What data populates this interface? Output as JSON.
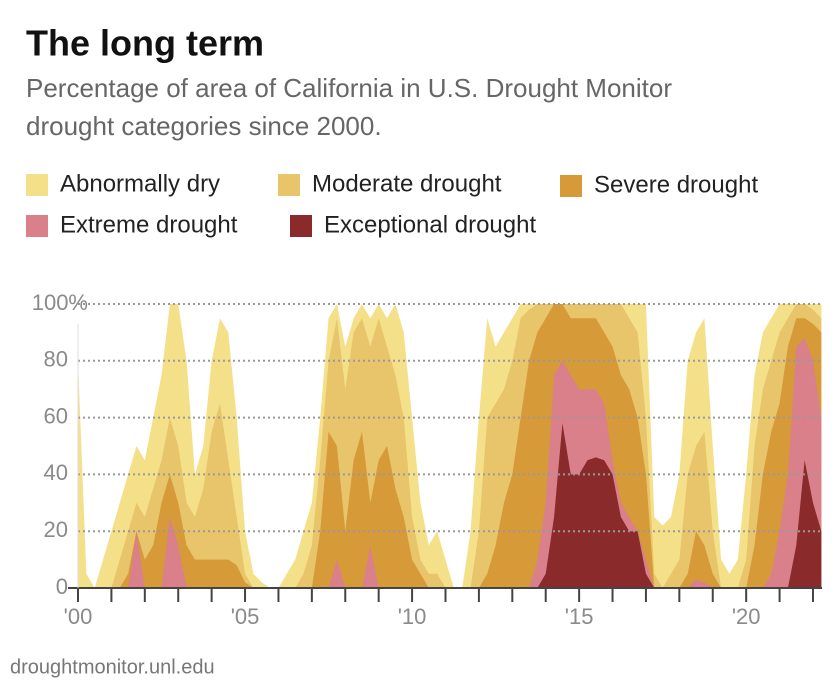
{
  "chart_data": {
    "type": "area",
    "title": "The long term",
    "subtitle": [
      "Percentage of area of California in U.S. Drought Monitor",
      "drought categories since 2000."
    ],
    "source": "droughtmonitor.unl.edu",
    "x": [
      2000,
      2000.25,
      2000.5,
      2000.75,
      2001,
      2001.25,
      2001.5,
      2001.75,
      2002,
      2002.25,
      2002.5,
      2002.75,
      2003,
      2003.25,
      2003.5,
      2003.75,
      2004,
      2004.25,
      2004.5,
      2004.75,
      2005,
      2005.25,
      2005.5,
      2005.75,
      2006,
      2006.25,
      2006.5,
      2006.75,
      2007,
      2007.25,
      2007.5,
      2007.75,
      2008,
      2008.25,
      2008.5,
      2008.75,
      2009,
      2009.25,
      2009.5,
      2009.75,
      2010,
      2010.25,
      2010.5,
      2010.75,
      2011,
      2011.25,
      2011.5,
      2011.75,
      2012,
      2012.25,
      2012.5,
      2012.75,
      2013,
      2013.25,
      2013.5,
      2013.75,
      2014,
      2014.25,
      2014.5,
      2014.75,
      2015,
      2015.25,
      2015.5,
      2015.75,
      2016,
      2016.25,
      2016.5,
      2016.75,
      2017,
      2017.25,
      2017.5,
      2017.75,
      2018,
      2018.25,
      2018.5,
      2018.75,
      2019,
      2019.25,
      2019.5,
      2019.75,
      2020,
      2020.25,
      2020.5,
      2020.75,
      2021,
      2021.25,
      2021.5,
      2021.75,
      2022,
      2022.25
    ],
    "series": [
      {
        "name": "Abnormally dry",
        "color": "#f5e08a",
        "values": [
          80,
          5,
          0,
          10,
          20,
          30,
          40,
          50,
          45,
          60,
          75,
          100,
          100,
          80,
          40,
          50,
          80,
          95,
          90,
          60,
          20,
          5,
          2,
          0,
          0,
          5,
          10,
          20,
          30,
          60,
          95,
          100,
          85,
          95,
          100,
          95,
          100,
          95,
          100,
          90,
          60,
          30,
          15,
          20,
          10,
          0,
          0,
          20,
          60,
          95,
          85,
          90,
          95,
          100,
          100,
          100,
          100,
          100,
          100,
          100,
          100,
          100,
          100,
          100,
          100,
          100,
          100,
          100,
          100,
          25,
          22,
          25,
          40,
          80,
          90,
          95,
          50,
          10,
          5,
          10,
          40,
          75,
          90,
          95,
          100,
          100,
          100,
          100,
          100,
          100
        ]
      },
      {
        "name": "Moderate drought",
        "color": "#e8c46a",
        "values": [
          0,
          0,
          0,
          0,
          0,
          10,
          20,
          30,
          25,
          35,
          45,
          60,
          50,
          30,
          25,
          35,
          55,
          65,
          45,
          25,
          5,
          0,
          0,
          0,
          0,
          0,
          0,
          5,
          15,
          45,
          80,
          95,
          70,
          90,
          95,
          85,
          95,
          85,
          75,
          60,
          25,
          10,
          5,
          5,
          0,
          0,
          0,
          0,
          20,
          60,
          65,
          70,
          80,
          95,
          98,
          100,
          100,
          100,
          100,
          100,
          100,
          100,
          100,
          100,
          100,
          100,
          95,
          90,
          60,
          5,
          0,
          5,
          10,
          40,
          50,
          55,
          20,
          0,
          0,
          0,
          10,
          50,
          70,
          80,
          90,
          95,
          100,
          100,
          98,
          95
        ]
      },
      {
        "name": "Severe drought",
        "color": "#d69a38",
        "values": [
          0,
          0,
          0,
          0,
          0,
          0,
          5,
          20,
          10,
          15,
          30,
          40,
          30,
          15,
          10,
          10,
          10,
          10,
          10,
          8,
          2,
          0,
          0,
          0,
          0,
          0,
          0,
          0,
          0,
          20,
          55,
          50,
          20,
          45,
          55,
          30,
          45,
          50,
          35,
          25,
          10,
          5,
          0,
          0,
          0,
          0,
          0,
          0,
          0,
          5,
          15,
          30,
          40,
          60,
          80,
          90,
          95,
          100,
          100,
          95,
          95,
          95,
          95,
          90,
          85,
          75,
          70,
          60,
          40,
          0,
          0,
          0,
          0,
          5,
          20,
          15,
          5,
          0,
          0,
          0,
          0,
          15,
          40,
          55,
          65,
          85,
          95,
          95,
          93,
          90
        ]
      },
      {
        "name": "Extreme drought",
        "color": "#d9808a",
        "values": [
          0,
          0,
          0,
          0,
          0,
          0,
          0,
          20,
          0,
          0,
          0,
          25,
          15,
          0,
          0,
          0,
          0,
          0,
          0,
          0,
          0,
          0,
          0,
          0,
          0,
          0,
          0,
          0,
          0,
          0,
          0,
          10,
          0,
          0,
          0,
          15,
          0,
          0,
          0,
          0,
          0,
          0,
          0,
          0,
          0,
          0,
          0,
          0,
          0,
          0,
          0,
          0,
          0,
          0,
          0,
          10,
          30,
          75,
          80,
          75,
          70,
          70,
          70,
          65,
          45,
          30,
          25,
          20,
          10,
          0,
          0,
          0,
          0,
          0,
          3,
          2,
          0,
          0,
          0,
          0,
          0,
          0,
          0,
          5,
          20,
          40,
          85,
          88,
          80,
          60
        ]
      },
      {
        "name": "Exceptional drought",
        "color": "#8b2a2a",
        "values": [
          0,
          0,
          0,
          0,
          0,
          0,
          0,
          0,
          0,
          0,
          0,
          0,
          0,
          0,
          0,
          0,
          0,
          0,
          0,
          0,
          0,
          0,
          0,
          0,
          0,
          0,
          0,
          0,
          0,
          0,
          0,
          0,
          0,
          0,
          0,
          0,
          0,
          0,
          0,
          0,
          0,
          0,
          0,
          0,
          0,
          0,
          0,
          0,
          0,
          0,
          0,
          0,
          0,
          0,
          0,
          0,
          5,
          25,
          58,
          40,
          40,
          45,
          46,
          45,
          40,
          25,
          20,
          20,
          5,
          0,
          0,
          0,
          0,
          0,
          0,
          0,
          0,
          0,
          0,
          0,
          0,
          0,
          0,
          0,
          0,
          0,
          15,
          45,
          30,
          20
        ]
      }
    ],
    "xlim": [
      2000,
      2022.27
    ],
    "xticks": [
      {
        "value": 2000,
        "label": "'00"
      },
      {
        "value": 2005,
        "label": "'05"
      },
      {
        "value": 2010,
        "label": "'10"
      },
      {
        "value": 2015,
        "label": "'15"
      },
      {
        "value": 2020,
        "label": "'20"
      }
    ],
    "xminorticks": [
      2001,
      2002,
      2003,
      2004,
      2006,
      2007,
      2008,
      2009,
      2011,
      2012,
      2013,
      2014,
      2016,
      2017,
      2018,
      2019,
      2021,
      2022
    ],
    "ylim": [
      0,
      100
    ],
    "yticks": [
      0,
      20,
      40,
      60,
      80,
      {
        "value": 100,
        "label": "100%"
      }
    ],
    "grid": true
  }
}
